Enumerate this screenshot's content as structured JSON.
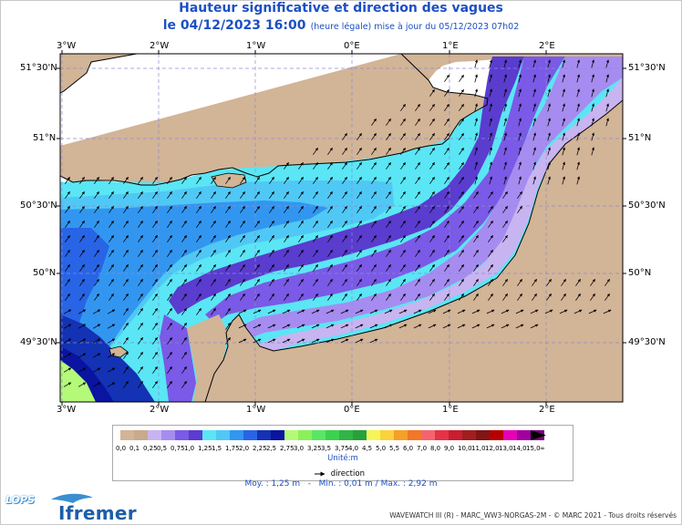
{
  "title": "Hauteur significative et direction des vagues",
  "subtitle_date": "le 04/12/2023 16:00",
  "subtitle_detail": "(heure légale) mise à jour du 05/12/2023 07h02",
  "axes": {
    "lon_top": [
      "3°W",
      "2°W",
      "1°W",
      "0°E",
      "1°E",
      "2°E"
    ],
    "lon_bottom": [
      "3°W",
      "2°W",
      "1°W",
      "0°E",
      "1°E",
      "2°E"
    ],
    "lat_left": [
      "51°30'N",
      "51°N",
      "50°30'N",
      "50°N",
      "49°30'N"
    ],
    "lat_right": [
      "51°30'N",
      "51°N",
      "50°30'N",
      "50°N",
      "49°30'N"
    ]
  },
  "legend": {
    "labels": [
      "0,0",
      "0,1",
      "0,25",
      "0,5",
      "0,75",
      "1,0",
      "1,25",
      "1,5",
      "1,75",
      "2,0",
      "2,25",
      "2,5",
      "2,75",
      "3,0",
      "3,25",
      "3,5",
      "3,75",
      "4,0",
      "4,5",
      "5,0",
      "5,5",
      "6,0",
      "7,0",
      "8,0",
      "9,0",
      "10,0",
      "11,0",
      "12,0",
      "13,0",
      "14,0",
      "15,0",
      "∞"
    ],
    "colors": [
      "#d2b496",
      "#c8aa8c",
      "#c8b4f0",
      "#a68cf0",
      "#7a5ae6",
      "#5a3ccf",
      "#5ae6f5",
      "#50c8f5",
      "#3296f0",
      "#2864e6",
      "#1432b4",
      "#0a14a0",
      "#b4fa78",
      "#8cf05a",
      "#5ae664",
      "#3cd250",
      "#32b446",
      "#28a03c",
      "#f5f55a",
      "#fad23c",
      "#f5a028",
      "#f07828",
      "#f5646e",
      "#e63246",
      "#c81e32",
      "#a01e1e",
      "#821414",
      "#b40000",
      "#e600b4",
      "#a000a0",
      "#780078"
    ],
    "unit": "Unité:m",
    "direction_label": "direction"
  },
  "stats": {
    "moy": "Moy. : 1,25 m",
    "minmax": "Min. : 0,01 m / Max. : 2,92 m"
  },
  "branding": {
    "lops": "LOPS",
    "ifremer": "Ifremer",
    "credit": "WAVEWATCH III (R) - MARC_WW3-NORGAS-2M - © MARC 2021 - Tous droits réservés"
  },
  "map_data": {
    "extent": {
      "lon": [
        -3.1,
        2.8
      ],
      "lat": [
        49.1,
        51.6
      ]
    },
    "wave_height_range_m": [
      0.01,
      2.92
    ],
    "dominant_direction": "vers le nord-est"
  }
}
